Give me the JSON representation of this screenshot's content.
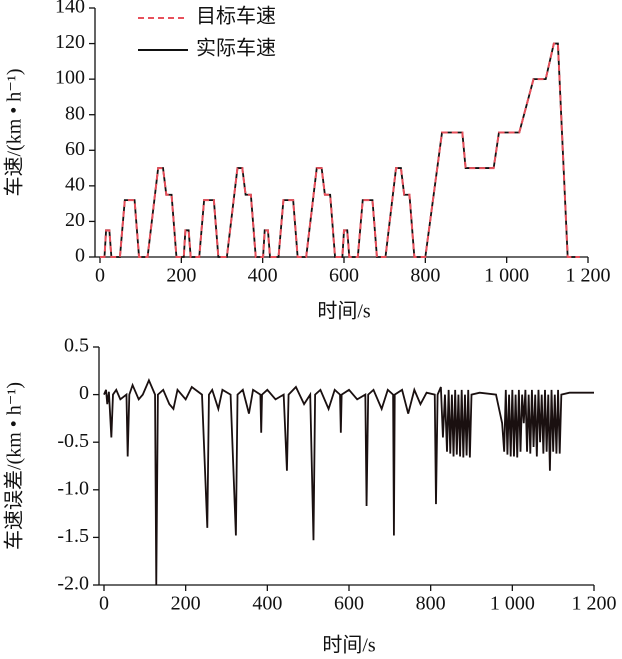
{
  "chart_data": [
    {
      "type": "line",
      "xlabel": "时间/s",
      "ylabel": "车速/(km • h⁻¹)",
      "xlim": [
        0,
        1200
      ],
      "xticks": [
        0,
        200,
        400,
        600,
        800,
        {
          "value": 1000,
          "label": "1 000"
        },
        {
          "value": 1200,
          "label": "1 200"
        }
      ],
      "ylim": [
        0,
        140
      ],
      "yticks": [
        0,
        20,
        40,
        60,
        80,
        100,
        120,
        140
      ],
      "legend": "upper left",
      "x": [
        0,
        11,
        15,
        23,
        28,
        49,
        61,
        85,
        96,
        117,
        143,
        155,
        163,
        176,
        188,
        195,
        206,
        210,
        218,
        223,
        244,
        256,
        280,
        291,
        312,
        338,
        350,
        358,
        371,
        383,
        390,
        401,
        405,
        413,
        418,
        439,
        451,
        475,
        486,
        507,
        533,
        545,
        553,
        566,
        578,
        585,
        596,
        600,
        608,
        613,
        634,
        646,
        670,
        681,
        702,
        728,
        740,
        748,
        761,
        773,
        780,
        800,
        841,
        891,
        899,
        968,
        981,
        1031,
        1066,
        1096,
        1116,
        1126,
        1150,
        1180
      ],
      "series": [
        {
          "name": "实际车速",
          "color": "#111111",
          "style": "solid",
          "values": [
            0,
            0,
            15,
            15,
            0,
            0,
            32,
            32,
            0,
            0,
            50,
            50,
            35,
            35,
            0,
            0,
            0,
            15,
            15,
            0,
            0,
            32,
            32,
            0,
            0,
            50,
            50,
            35,
            35,
            0,
            0,
            0,
            15,
            15,
            0,
            0,
            32,
            32,
            0,
            0,
            50,
            50,
            35,
            35,
            0,
            0,
            0,
            15,
            15,
            0,
            0,
            32,
            32,
            0,
            0,
            50,
            50,
            35,
            35,
            0,
            0,
            0,
            70,
            70,
            50,
            50,
            70,
            70,
            100,
            100,
            120,
            120,
            0,
            0
          ]
        },
        {
          "name": "目标车速",
          "color": "#e8505b",
          "style": "dashed",
          "values": [
            0,
            0,
            15,
            15,
            0,
            0,
            32,
            32,
            0,
            0,
            50,
            50,
            35,
            35,
            0,
            0,
            0,
            15,
            15,
            0,
            0,
            32,
            32,
            0,
            0,
            50,
            50,
            35,
            35,
            0,
            0,
            0,
            15,
            15,
            0,
            0,
            32,
            32,
            0,
            0,
            50,
            50,
            35,
            35,
            0,
            0,
            0,
            15,
            15,
            0,
            0,
            32,
            32,
            0,
            0,
            50,
            50,
            35,
            35,
            0,
            0,
            0,
            70,
            70,
            50,
            50,
            70,
            70,
            100,
            100,
            120,
            120,
            0,
            0
          ]
        }
      ]
    },
    {
      "type": "line",
      "xlabel": "时间/s",
      "ylabel": "车速误差/(km • h⁻¹)",
      "xlim": [
        0,
        1200
      ],
      "xticks": [
        0,
        200,
        400,
        600,
        800,
        {
          "value": 1000,
          "label": "1 000"
        },
        {
          "value": 1200,
          "label": "1 200"
        }
      ],
      "ylim": [
        -2.0,
        0.5
      ],
      "yticks": [
        0.5,
        0,
        -0.5,
        {
          "value": -1.0,
          "label": "-1.0"
        },
        -1.5,
        {
          "value": -2.0,
          "label": "-2.0"
        }
      ],
      "x": [
        0,
        5,
        8,
        12,
        18,
        22,
        30,
        40,
        55,
        58,
        62,
        70,
        85,
        95,
        110,
        125,
        128,
        132,
        145,
        160,
        170,
        180,
        200,
        215,
        240,
        253,
        257,
        265,
        280,
        290,
        310,
        323,
        327,
        340,
        355,
        365,
        383,
        385,
        387,
        400,
        420,
        440,
        448,
        452,
        470,
        490,
        505,
        513,
        517,
        530,
        550,
        565,
        578,
        580,
        582,
        600,
        620,
        640,
        643,
        647,
        660,
        680,
        695,
        708,
        710,
        712,
        730,
        745,
        760,
        775,
        790,
        810,
        813,
        817,
        825,
        830,
        835,
        840,
        844,
        848,
        852,
        856,
        860,
        864,
        868,
        872,
        876,
        880,
        884,
        888,
        892,
        896,
        900,
        920,
        960,
        975,
        980,
        984,
        988,
        992,
        996,
        1000,
        1004,
        1008,
        1012,
        1016,
        1020,
        1024,
        1028,
        1032,
        1036,
        1040,
        1044,
        1048,
        1052,
        1056,
        1060,
        1064,
        1068,
        1072,
        1076,
        1080,
        1084,
        1088,
        1092,
        1096,
        1100,
        1104,
        1108,
        1112,
        1116,
        1120,
        1140,
        1200
      ],
      "series": [
        {
          "name": null,
          "color": "#1a1010",
          "style": "solid",
          "values": [
            0,
            0.05,
            -0.1,
            0.03,
            -0.45,
            0,
            0.05,
            -0.05,
            0,
            -0.65,
            0,
            0.1,
            -0.05,
            0,
            0.15,
            0,
            -2.0,
            0,
            0.05,
            -0.1,
            -0.15,
            0.05,
            -0.05,
            0.08,
            0,
            -1.4,
            0,
            0.05,
            -0.15,
            0.05,
            0,
            -1.48,
            0,
            0.05,
            -0.2,
            0.05,
            0,
            -0.4,
            0,
            0.05,
            -0.05,
            0,
            -0.8,
            0,
            0.08,
            -0.1,
            0,
            -1.53,
            0,
            0.05,
            -0.15,
            0.05,
            0,
            -0.4,
            0,
            0.05,
            -0.05,
            0,
            -1.17,
            0,
            0.05,
            -0.15,
            0.05,
            0,
            -1.48,
            0,
            0.05,
            -0.2,
            0.05,
            -0.1,
            0.02,
            0,
            -1.15,
            0,
            0.08,
            -0.45,
            0,
            -0.6,
            0.05,
            -0.62,
            0,
            -0.65,
            0.05,
            -0.63,
            0,
            -0.65,
            0.05,
            -0.66,
            0,
            -0.64,
            0.05,
            -0.66,
            0,
            0.02,
            0,
            -0.3,
            -0.6,
            0.05,
            -0.63,
            0,
            -0.65,
            0.05,
            -0.65,
            0,
            -0.66,
            0.05,
            -0.6,
            0,
            -0.3,
            0.05,
            -0.6,
            0,
            -0.62,
            0.05,
            -0.55,
            0,
            -0.65,
            0.05,
            -0.5,
            0,
            -0.62,
            0.05,
            -0.6,
            0,
            -0.8,
            0.05,
            -0.6,
            0,
            -0.62,
            0.05,
            -0.62,
            0,
            0.02,
            0.02
          ]
        }
      ]
    }
  ]
}
